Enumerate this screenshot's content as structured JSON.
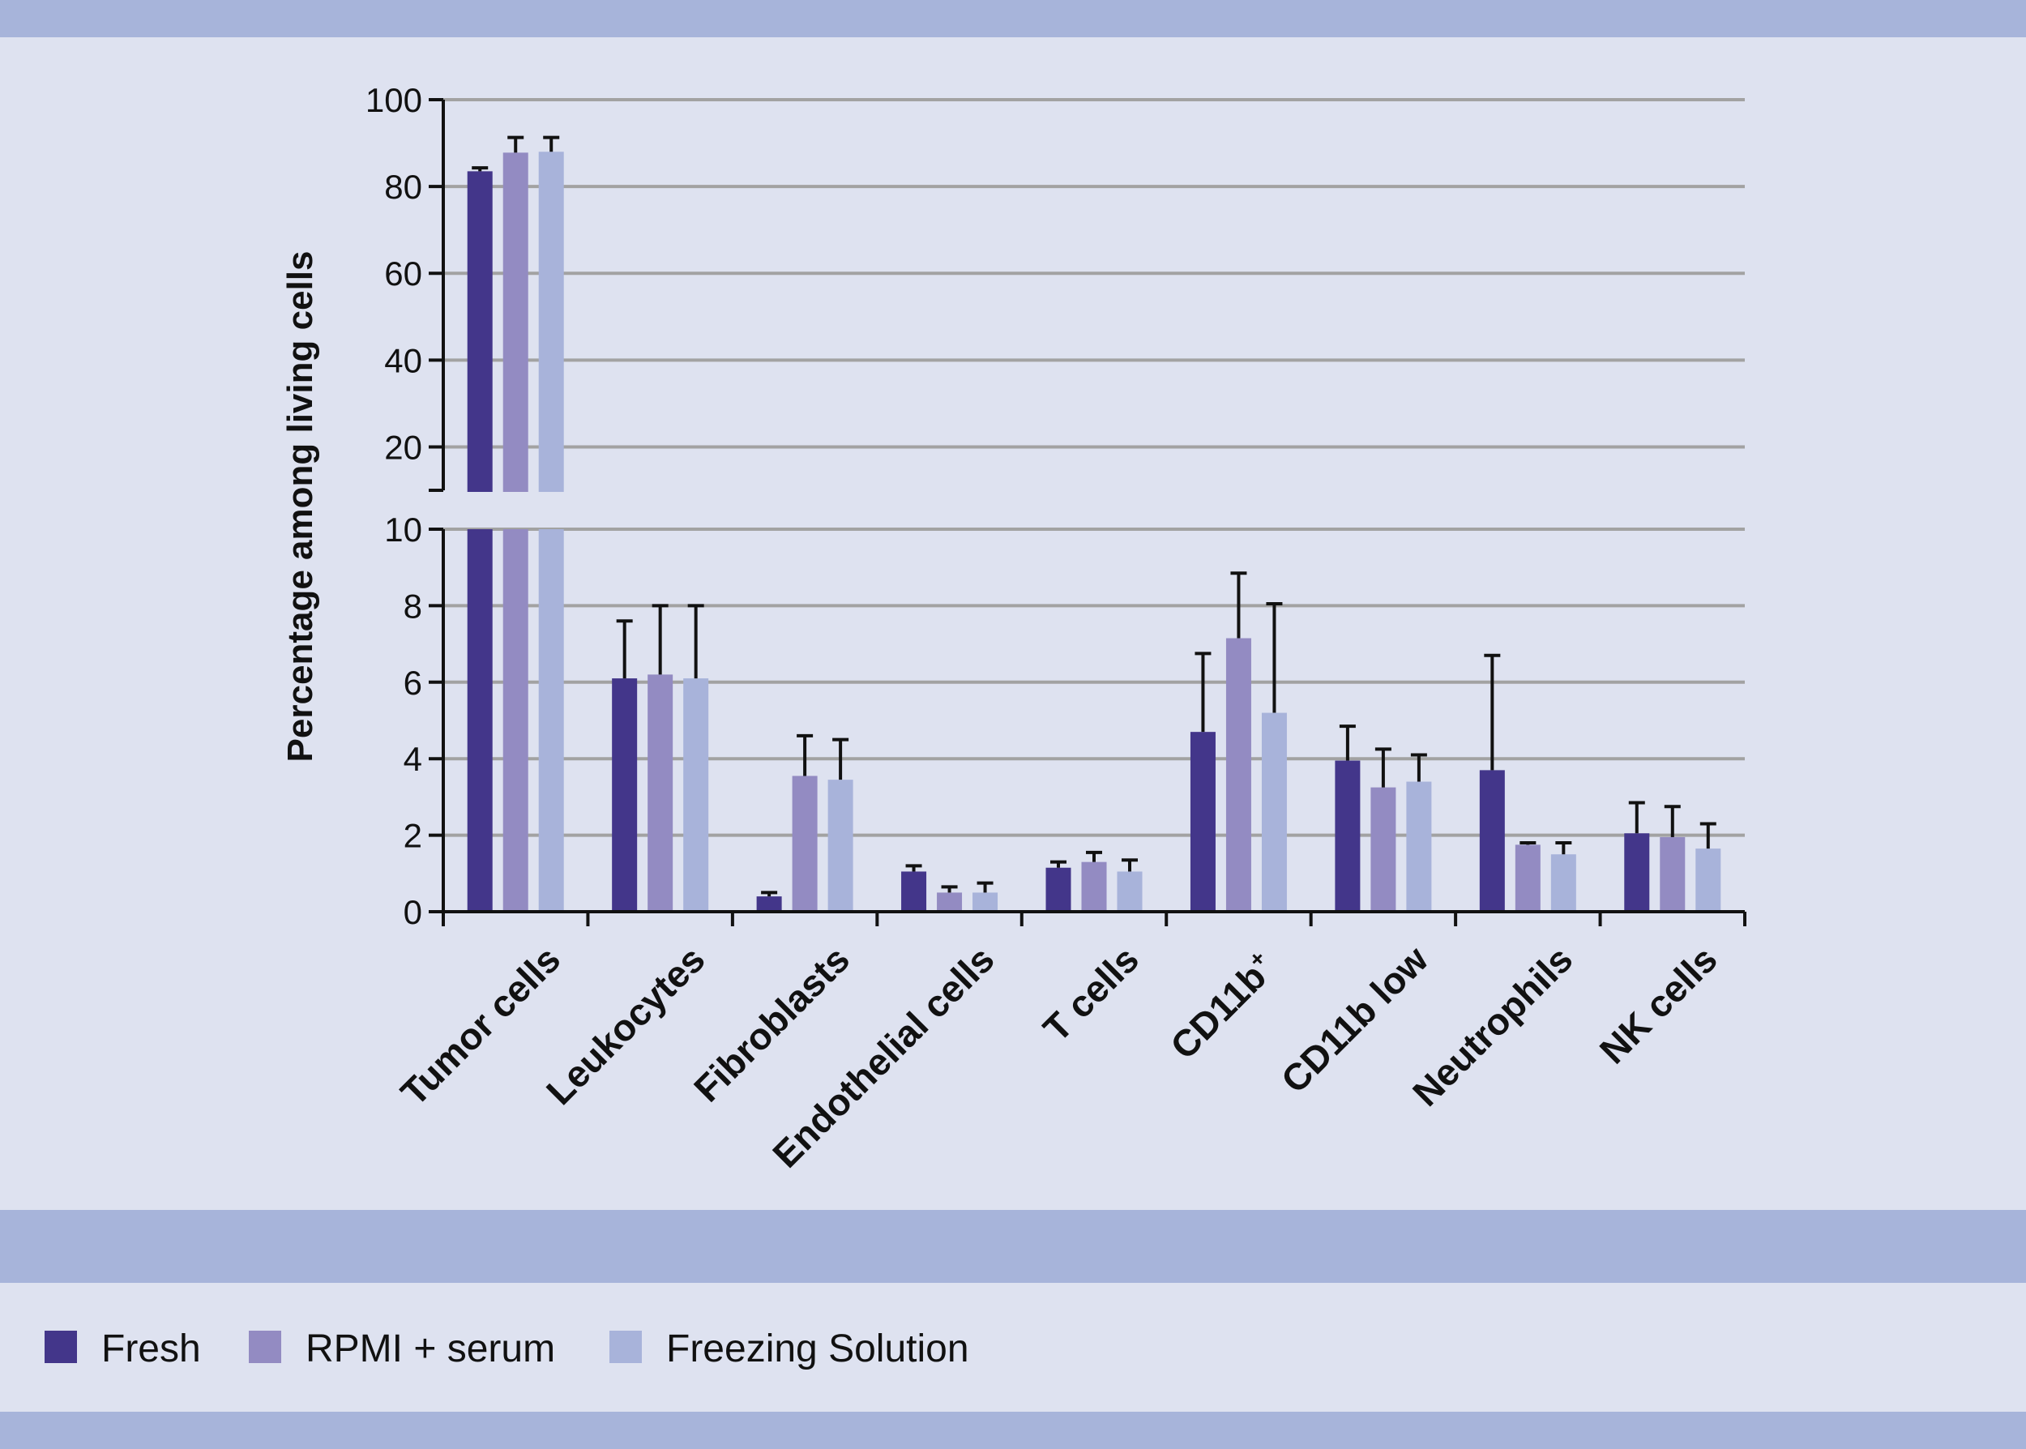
{
  "chart_data": {
    "type": "bar",
    "ylabel": "Percentage among living cells",
    "xlabel": "",
    "categories": [
      "Tumor cells",
      "Leukocytes",
      "Fibroblasts",
      "Endothelial cells",
      "T cells",
      "CD11b",
      "CD11b low",
      "Neutrophils",
      "NK cells"
    ],
    "category_superscripts": [
      "",
      "",
      "",
      "",
      "",
      "+",
      "",
      "",
      ""
    ],
    "y_axis": {
      "broken": true,
      "lower_range": [
        0,
        10
      ],
      "lower_ticks": [
        0,
        2,
        4,
        6,
        8,
        10
      ],
      "upper_range": [
        10,
        100
      ],
      "upper_ticks": [
        20,
        40,
        60,
        80,
        100
      ]
    },
    "series": [
      {
        "name": "Fresh",
        "color": "#43368a",
        "values": [
          83.5,
          6.1,
          0.4,
          1.05,
          1.15,
          4.7,
          3.95,
          3.7,
          2.05
        ],
        "errors": [
          0.8,
          1.5,
          0.1,
          0.15,
          0.15,
          2.05,
          0.9,
          3.0,
          0.8
        ]
      },
      {
        "name": "RPMI + serum",
        "color": "#938bc2",
        "values": [
          87.8,
          6.2,
          3.55,
          0.5,
          1.3,
          7.15,
          3.25,
          1.75,
          1.95
        ],
        "errors": [
          3.5,
          1.8,
          1.05,
          0.15,
          0.25,
          1.7,
          1.0,
          0.05,
          0.8
        ]
      },
      {
        "name": "Freezing Solution",
        "color": "#a8b3da",
        "values": [
          88.0,
          6.1,
          3.45,
          0.5,
          1.05,
          5.2,
          3.4,
          1.5,
          1.65
        ],
        "errors": [
          3.3,
          1.9,
          1.05,
          0.25,
          0.3,
          2.85,
          0.7,
          0.3,
          0.65
        ]
      }
    ],
    "legend_position": "bottom-left",
    "grid": true
  }
}
